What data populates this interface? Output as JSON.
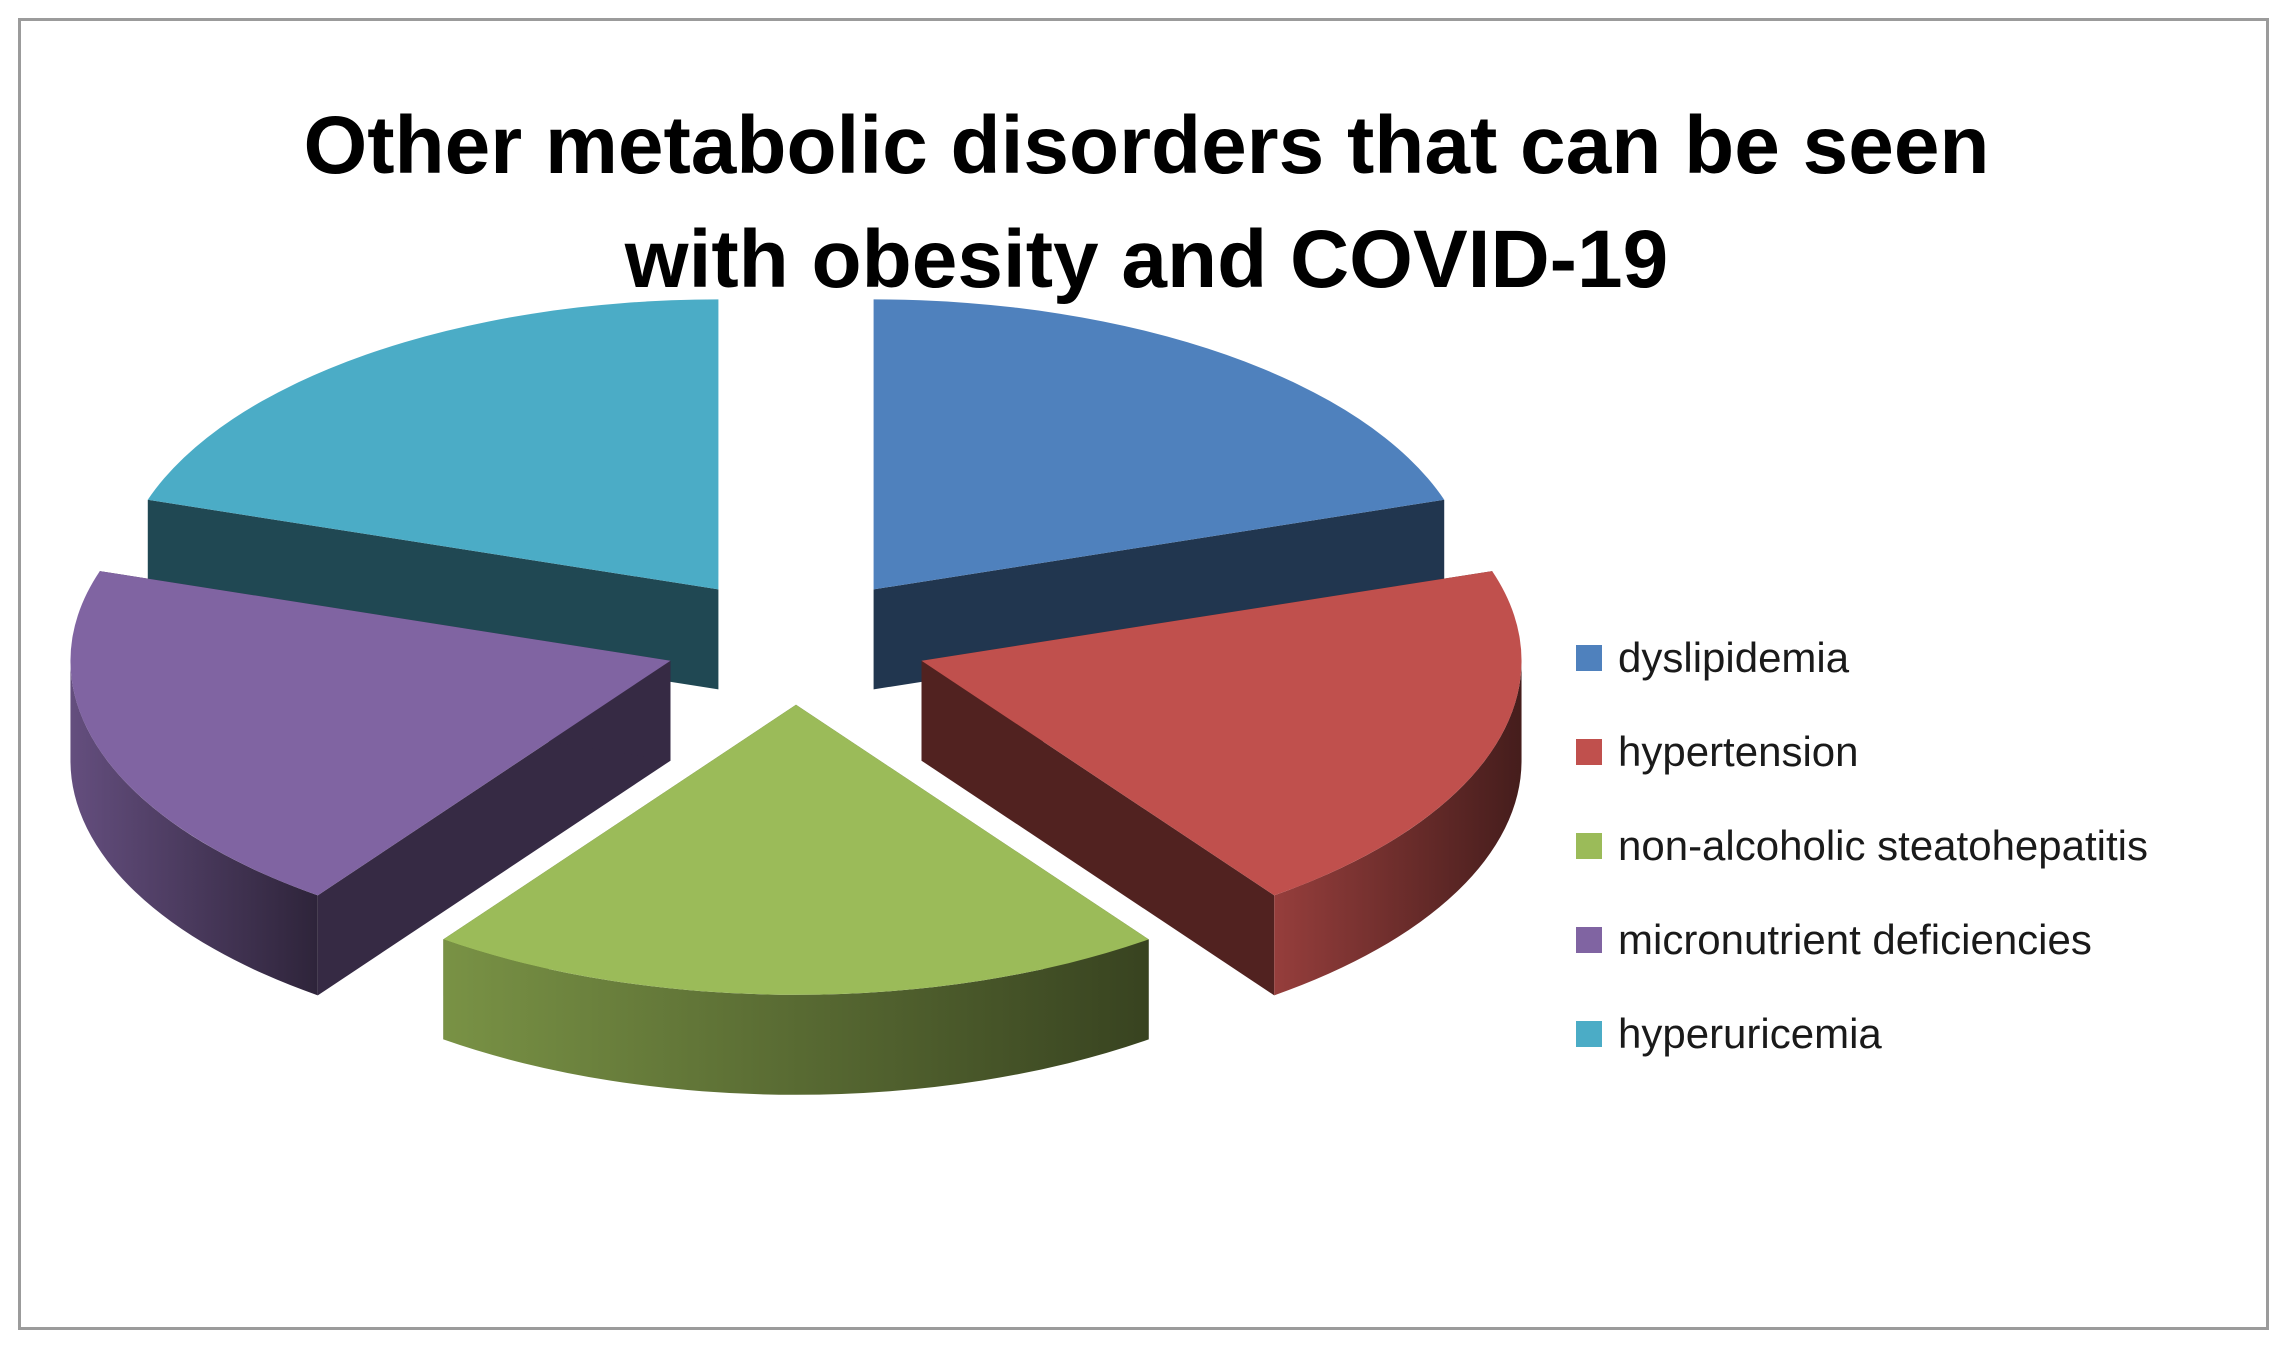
{
  "chart_data": {
    "type": "pie",
    "title": "Other metabolic disorders that can be seen with obesity and COVID-19",
    "title_lines": [
      "Other metabolic disorders that can be seen",
      "with obesity and COVID-19"
    ],
    "categories": [
      "dyslipidemia",
      "hypertension",
      "non-alcoholic steatohepatitis",
      "micronutrient deficiencies",
      "hyperuricemia"
    ],
    "values": [
      20,
      20,
      20,
      20,
      20
    ],
    "colors": [
      "#4f81bd",
      "#c0504d",
      "#9bbb59",
      "#8064a2",
      "#4bacc6"
    ],
    "exploded": true,
    "three_d": true,
    "legend_position": "right"
  }
}
